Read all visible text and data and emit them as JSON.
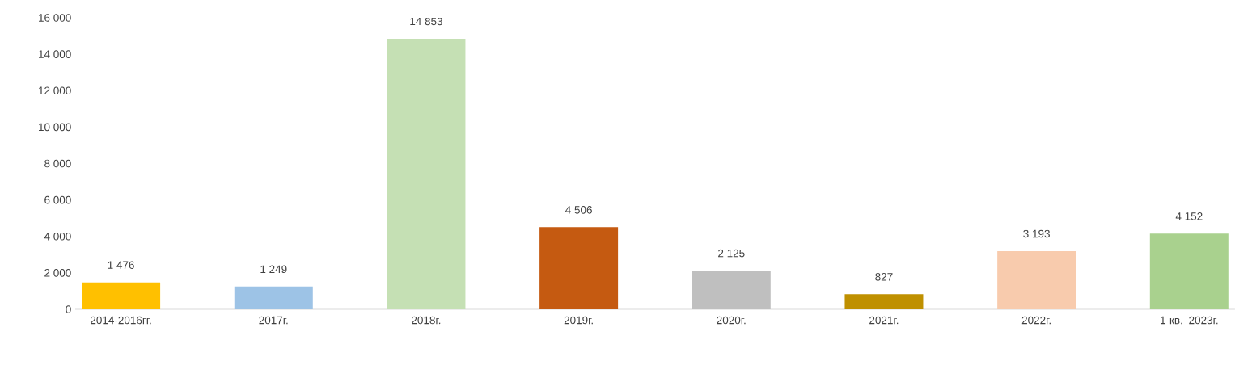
{
  "chart_data": {
    "type": "bar",
    "categories": [
      "2014-2016гг.",
      "2017г.",
      "2018г.",
      "2019г.",
      "2020г.",
      "2021г.",
      "2022г.",
      "1 кв. 2023г."
    ],
    "values": [
      1476,
      1249,
      14853,
      4506,
      2125,
      827,
      3193,
      4152
    ],
    "colors": [
      "#ffc000",
      "#9dc3e6",
      "#c5e0b4",
      "#c55a11",
      "#bfbfbf",
      "#bf9000",
      "#f8cbad",
      "#a9d18e"
    ],
    "value_labels": [
      "1 476",
      "1 249",
      "14 853",
      "4 506",
      "2 125",
      "827",
      "3 193",
      "4 152"
    ],
    "ylim": [
      0,
      16000
    ],
    "yticks": [
      {
        "value": 0,
        "label": "0"
      },
      {
        "value": 2000,
        "label": "2 000"
      },
      {
        "value": 4000,
        "label": "4 000"
      },
      {
        "value": 6000,
        "label": "6 000"
      },
      {
        "value": 8000,
        "label": "8 000"
      },
      {
        "value": 10000,
        "label": "10 000"
      },
      {
        "value": 12000,
        "label": "12 000"
      },
      {
        "value": 14000,
        "label": "14 000"
      },
      {
        "value": 16000,
        "label": "16 000"
      }
    ]
  }
}
